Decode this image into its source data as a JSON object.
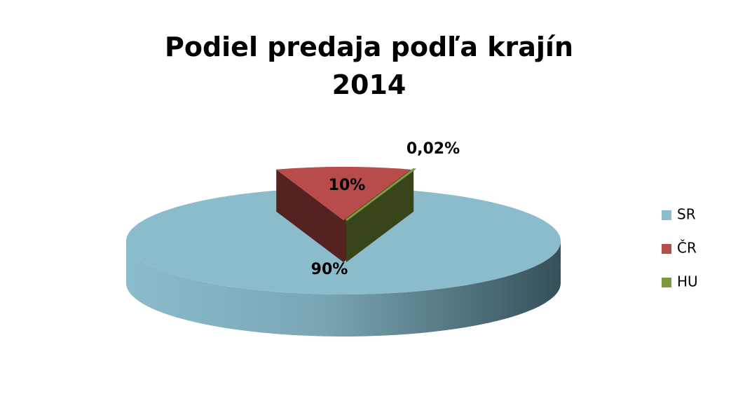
{
  "chart_data": {
    "type": "pie",
    "title": "Podiel predaja podľa krajín\n2014",
    "categories": [
      "SR",
      "ČR",
      "HU"
    ],
    "values": [
      90,
      10,
      0.02
    ],
    "value_labels": [
      "90%",
      "10%",
      "0,02%"
    ],
    "colors": [
      "#8bbccc",
      "#b84c4a",
      "#7c9a3c"
    ],
    "legend": "right"
  }
}
